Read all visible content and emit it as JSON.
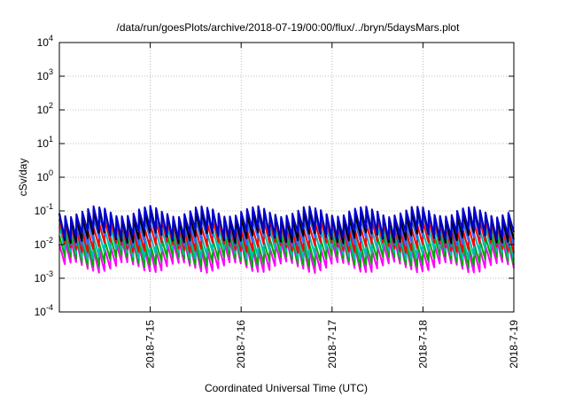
{
  "chart_data": {
    "type": "line",
    "title": "/data/run/goesPlots/archive/2018-07-19/00:00/flux/../bryn/5daysMars.plot",
    "xlabel": "Coordinated Universal Time (UTC)",
    "ylabel": "cSv/day",
    "yscale": "log",
    "ylim": [
      0.0001,
      10000
    ],
    "y_ticks": [
      {
        "base": "10",
        "exp": "-4",
        "value": 0.0001
      },
      {
        "base": "10",
        "exp": "-3",
        "value": 0.001
      },
      {
        "base": "10",
        "exp": "-2",
        "value": 0.01
      },
      {
        "base": "10",
        "exp": "-1",
        "value": 0.1
      },
      {
        "base": "10",
        "exp": "0",
        "value": 1
      },
      {
        "base": "10",
        "exp": "1",
        "value": 10
      },
      {
        "base": "10",
        "exp": "2",
        "value": 100
      },
      {
        "base": "10",
        "exp": "3",
        "value": 1000
      },
      {
        "base": "10",
        "exp": "4",
        "value": 10000
      }
    ],
    "xlim": [
      "2018-07-14",
      "2018-07-19"
    ],
    "x_ticks": [
      "2018-7-15",
      "2018-7-16",
      "2018-7-17",
      "2018-7-18",
      "2018-7-19"
    ],
    "grid": true,
    "legend": "none",
    "series": [
      {
        "color": "#ff00ff",
        "values": [
          0.002,
          0.01
        ]
      },
      {
        "color": "#00aa00",
        "values": [
          0.003,
          0.015
        ]
      },
      {
        "color": "#00bbbb",
        "values": [
          0.005,
          0.025
        ]
      },
      {
        "color": "#ff0000",
        "values": [
          0.008,
          0.04
        ]
      },
      {
        "color": "#3366ff",
        "values": [
          0.012,
          0.06
        ]
      },
      {
        "color": "#000000",
        "values": [
          0.015,
          0.08
        ]
      },
      {
        "color": "#0000cc",
        "values": [
          0.02,
          0.1
        ]
      }
    ]
  }
}
